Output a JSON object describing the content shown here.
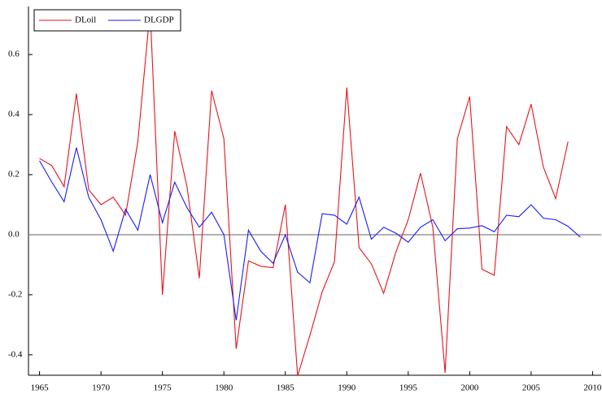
{
  "chart_data": {
    "type": "line",
    "x": [
      1965,
      1966,
      1967,
      1968,
      1969,
      1970,
      1971,
      1972,
      1973,
      1974,
      1975,
      1976,
      1977,
      1978,
      1979,
      1980,
      1981,
      1982,
      1983,
      1984,
      1985,
      1986,
      1987,
      1988,
      1989,
      1990,
      1991,
      1992,
      1993,
      1994,
      1995,
      1996,
      1997,
      1998,
      1999,
      2000,
      2001,
      2002,
      2003,
      2004,
      2005,
      2006,
      2007,
      2008,
      2009
    ],
    "series": [
      {
        "name": "DLoil",
        "color": "#e8141c",
        "values": [
          0.254,
          0.23,
          0.16,
          0.47,
          0.15,
          0.1,
          0.125,
          0.065,
          0.31,
          0.75,
          -0.2,
          0.345,
          0.16,
          -0.145,
          0.48,
          0.32,
          -0.38,
          -0.087,
          -0.105,
          -0.11,
          0.1,
          -0.47,
          -0.335,
          -0.19,
          -0.09,
          0.49,
          -0.043,
          -0.097,
          -0.195,
          -0.057,
          0.05,
          0.205,
          0.025,
          -0.46,
          0.32,
          0.46,
          -0.115,
          -0.135,
          0.36,
          0.3,
          0.435,
          0.225,
          0.12,
          0.31,
          null
        ]
      },
      {
        "name": "DLGDP",
        "color": "#1a1aff",
        "values": [
          0.246,
          0.175,
          0.11,
          0.29,
          0.125,
          0.05,
          -0.055,
          0.085,
          0.015,
          0.2,
          0.04,
          0.175,
          0.09,
          0.025,
          0.075,
          0.0,
          -0.285,
          0.015,
          -0.055,
          -0.095,
          0.0,
          -0.125,
          -0.16,
          0.07,
          0.065,
          0.035,
          0.125,
          -0.015,
          0.025,
          0.005,
          -0.025,
          0.025,
          0.05,
          -0.02,
          0.02,
          0.022,
          0.03,
          0.01,
          0.065,
          0.06,
          0.1,
          0.055,
          0.05,
          0.028,
          -0.008
        ]
      }
    ],
    "xlim": [
      1964.1,
      2010.7
    ],
    "xticks": [
      1965,
      1970,
      1975,
      1980,
      1985,
      1990,
      1995,
      2000,
      2005,
      2010
    ],
    "ylim": [
      -0.468,
      0.76
    ],
    "yticks": [
      -0.4,
      -0.2,
      {
        "value": 0,
        "label": "0.0"
      },
      0.2,
      0.4,
      0.6
    ],
    "zero_line": true,
    "legend": "top-left"
  }
}
